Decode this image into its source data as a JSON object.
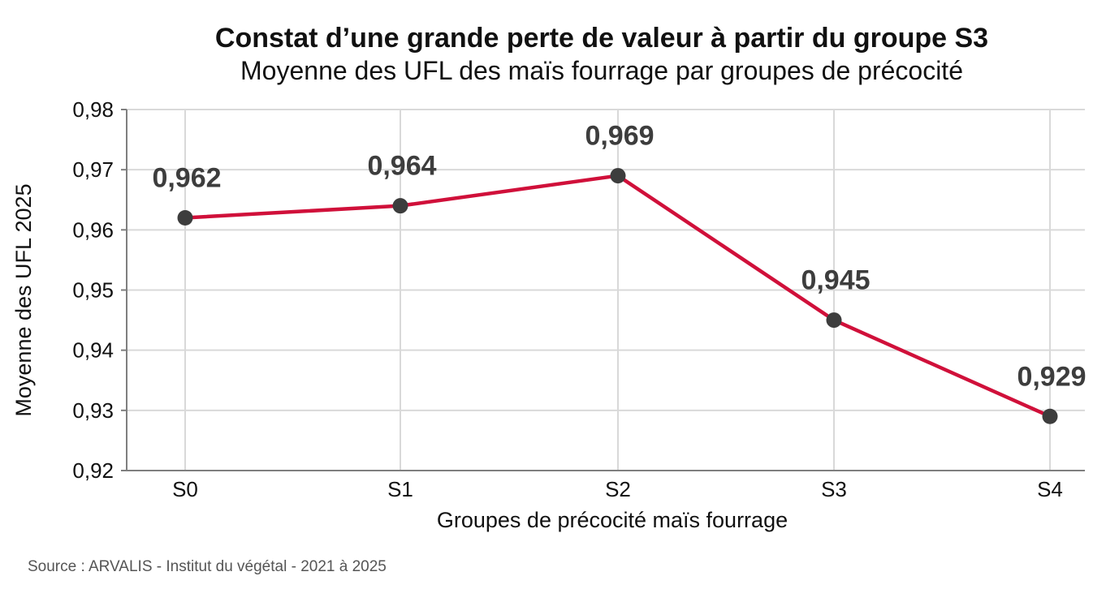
{
  "chart_data": {
    "type": "line",
    "title": "Constat d’une grande perte de valeur à partir du groupe S3",
    "subtitle": "Moyenne des UFL des maïs fourrage par groupes de précocité",
    "xlabel": "Groupes de précocité maïs fourrage",
    "ylabel": "Moyenne des UFL 2025",
    "categories": [
      "S0",
      "S1",
      "S2",
      "S3",
      "S4"
    ],
    "values": [
      0.962,
      0.964,
      0.969,
      0.945,
      0.929
    ],
    "data_labels": [
      "0,962",
      "0,964",
      "0,969",
      "0,945",
      "0,929"
    ],
    "ylim": [
      0.92,
      0.98
    ],
    "yticks": [
      0.92,
      0.93,
      0.94,
      0.95,
      0.96,
      0.97,
      0.98
    ],
    "ytick_labels": [
      "0,92",
      "0,93",
      "0,94",
      "0,95",
      "0,96",
      "0,97",
      "0,98"
    ],
    "grid": true,
    "line_color": "#d0103a",
    "marker_color": "#3d3d3d",
    "grid_color": "#d9d9d9"
  },
  "source": "Source : ARVALIS - Institut du végétal - 2021 à 2025"
}
